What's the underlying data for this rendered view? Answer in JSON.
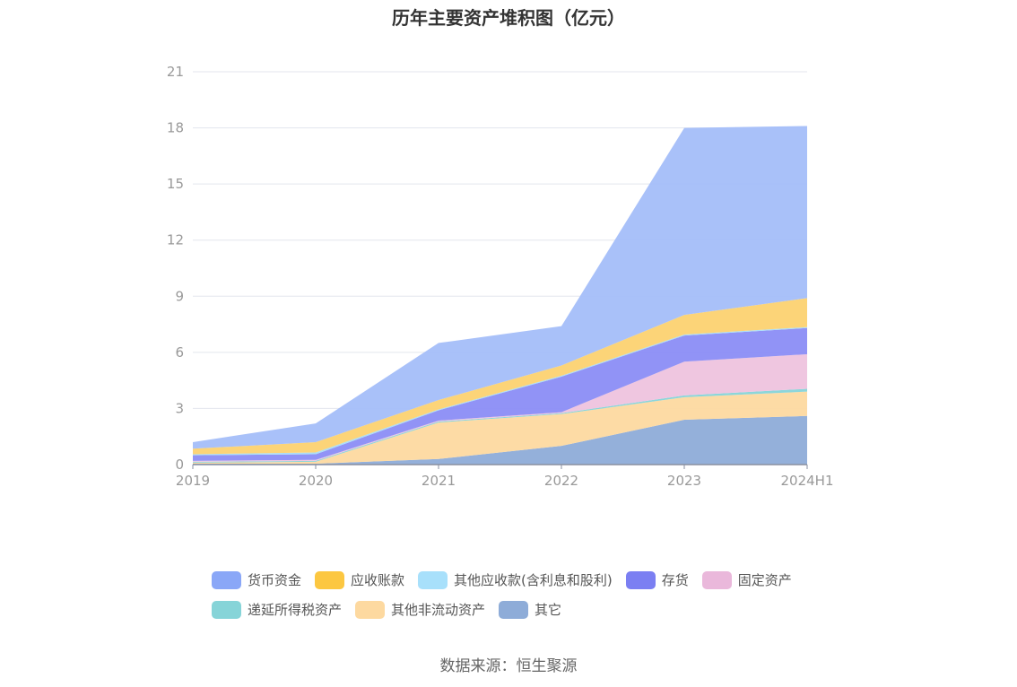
{
  "chart_data": {
    "type": "area",
    "stacked": true,
    "title": "历年主要资产堆积图（亿元）",
    "categories": [
      "2019",
      "2020",
      "2021",
      "2022",
      "2023",
      "2024H1"
    ],
    "ylim": [
      0,
      21
    ],
    "yticks": [
      0,
      3,
      6,
      9,
      12,
      15,
      18,
      21
    ],
    "grid": true,
    "legend_position": "bottom",
    "series": [
      {
        "name": "其它",
        "color": "#8eacd8",
        "values": [
          0.05,
          0.05,
          0.3,
          1.0,
          2.4,
          2.6
        ]
      },
      {
        "name": "其他非流动资产",
        "color": "#fdd9a0",
        "values": [
          0.05,
          0.1,
          1.95,
          1.7,
          1.2,
          1.3
        ]
      },
      {
        "name": "递延所得税资产",
        "color": "#86d4d8",
        "values": [
          0.05,
          0.05,
          0.05,
          0.05,
          0.1,
          0.15
        ]
      },
      {
        "name": "固定资产",
        "color": "#eec3de",
        "values": [
          0.05,
          0.05,
          0.05,
          0.05,
          1.8,
          1.85
        ]
      },
      {
        "name": "存货",
        "color": "#8b8df5",
        "values": [
          0.3,
          0.3,
          0.55,
          1.9,
          1.4,
          1.4
        ]
      },
      {
        "name": "其他应收款(含利息和股利)",
        "color": "#a7dbf7",
        "values": [
          0.05,
          0.1,
          0.05,
          0.05,
          0.05,
          0.05
        ]
      },
      {
        "name": "应收账款",
        "color": "#fcd271",
        "values": [
          0.3,
          0.55,
          0.5,
          0.55,
          1.05,
          1.55
        ]
      },
      {
        "name": "货币资金",
        "color": "#a4bef9",
        "values": [
          0.35,
          1.0,
          3.05,
          2.1,
          10.0,
          9.2
        ]
      }
    ]
  },
  "legend": {
    "row1": [
      {
        "name": "货币资金",
        "color": "#8aa7f7"
      },
      {
        "name": "应收账款",
        "color": "#fcc741"
      },
      {
        "name": "其他应收款(含利息和股利)",
        "color": "#a8e0fb"
      },
      {
        "name": "存货",
        "color": "#7b7ff2"
      },
      {
        "name": "固定资产",
        "color": "#eab8db"
      }
    ],
    "row2": [
      {
        "name": "递延所得税资产",
        "color": "#86d4d8"
      },
      {
        "name": "其他非流动资产",
        "color": "#fdd9a0"
      },
      {
        "name": "其它",
        "color": "#8eacd8"
      }
    ]
  },
  "source": "数据来源：恒生聚源"
}
